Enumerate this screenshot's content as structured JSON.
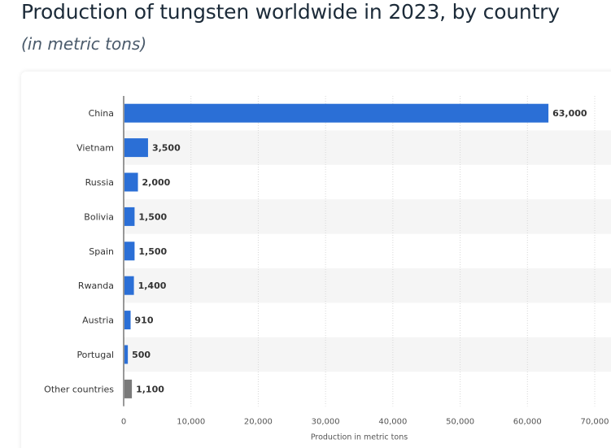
{
  "header": {
    "title": "Production of tungsten worldwide in 2023, by country",
    "subtitle": "(in metric tons)"
  },
  "colors": {
    "bar": "#2b6fd6",
    "bar_other": "#7a7a7a",
    "stripe": "#f5f5f5",
    "text": "#333333"
  },
  "chart_data": {
    "type": "bar",
    "orientation": "horizontal",
    "categories": [
      "China",
      "Vietnam",
      "Russia",
      "Bolivia",
      "Spain",
      "Rwanda",
      "Austria",
      "Portugal",
      "Other countries"
    ],
    "values": [
      63000,
      3500,
      2000,
      1500,
      1500,
      1400,
      910,
      500,
      1100
    ],
    "value_labels": [
      "63,000",
      "3,500",
      "2,000",
      "1,500",
      "1,500",
      "1,400",
      "910",
      "500",
      "1,100"
    ],
    "title": "Production of tungsten worldwide in 2023, by country",
    "subtitle": "(in metric tons)",
    "xlabel": "Production in metric tons",
    "ylabel": "",
    "xlim": [
      0,
      70000
    ],
    "ticks": [
      0,
      10000,
      20000,
      30000,
      40000,
      50000,
      60000,
      70000
    ],
    "tick_labels": [
      "0",
      "10,000",
      "20,000",
      "30,000",
      "40,000",
      "50,000",
      "60,000",
      "70,000"
    ],
    "grid": true,
    "legend": "none"
  }
}
